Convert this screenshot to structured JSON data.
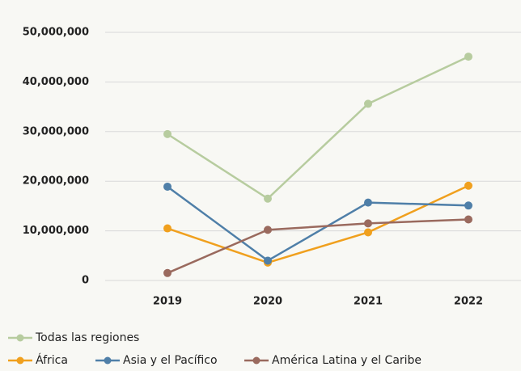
{
  "chart_data": {
    "type": "line",
    "categories": [
      "2019",
      "2020",
      "2021",
      "2022"
    ],
    "series": [
      {
        "name": "Todas las regiones",
        "color": "#b7cc9f",
        "values": [
          29500000,
          16500000,
          35600000,
          45100000
        ]
      },
      {
        "name": "África",
        "color": "#f0a01e",
        "values": [
          10500000,
          3600000,
          9700000,
          19100000
        ]
      },
      {
        "name": "Asia y el Pacífico",
        "color": "#4f7fa8",
        "values": [
          18900000,
          4000000,
          15700000,
          15100000
        ]
      },
      {
        "name": "América Latina y el Caribe",
        "color": "#9a6a5e",
        "values": [
          1500000,
          10200000,
          11500000,
          12300000
        ]
      }
    ],
    "ylim": [
      0,
      50000000
    ],
    "yticks": [
      0,
      {
        "value": 10000000,
        "label": "10,000,000"
      },
      {
        "value": 20000000,
        "label": "20,000,000"
      },
      {
        "value": 30000000,
        "label": "30,000,000"
      },
      {
        "value": 40000000,
        "label": "40,000,000"
      },
      {
        "value": 50000000,
        "label": "50,000,000"
      }
    ],
    "grid": true
  }
}
